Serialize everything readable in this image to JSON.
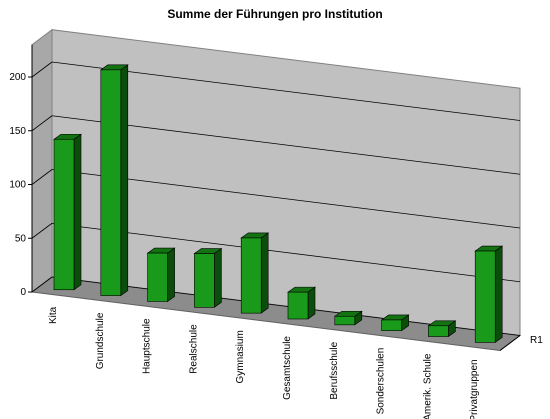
{
  "chart_data": {
    "type": "bar3d",
    "title": "Summe der Führungen pro Institution",
    "categories": [
      "Kita",
      "Grundschule",
      "Hauptschule",
      "Realschule",
      "Gymnasium",
      "Gesamtschule",
      "Berufsschule",
      "Sonderschulen",
      "Amerik. Schule",
      "Privatgruppen"
    ],
    "series": [
      {
        "name": "R1",
        "color": "#1a9a1a",
        "values": [
          140,
          210,
          45,
          50,
          70,
          25,
          8,
          10,
          10,
          85
        ]
      }
    ],
    "ylim": [
      0,
      230
    ],
    "yticks": [
      0,
      50,
      100,
      150,
      200
    ],
    "grid": true
  }
}
